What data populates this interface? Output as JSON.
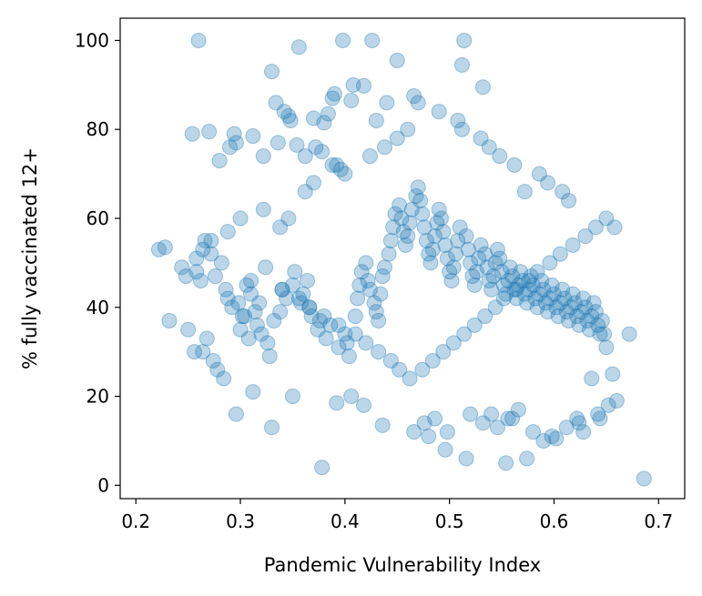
{
  "chart_data": {
    "type": "scatter",
    "title": "",
    "xlabel": "Pandemic Vulnerability Index",
    "ylabel": "% fully vaccinated 12+",
    "xlim": [
      0.185,
      0.725
    ],
    "ylim": [
      -3,
      105
    ],
    "xticks": [
      0.2,
      0.3,
      0.4,
      0.5,
      0.6,
      0.7
    ],
    "xtick_labels": [
      "0.2",
      "0.3",
      "0.4",
      "0.5",
      "0.6",
      "0.7"
    ],
    "yticks": [
      0,
      20,
      40,
      60,
      80,
      100
    ],
    "ytick_labels": [
      "0",
      "20",
      "40",
      "60",
      "80",
      "100"
    ],
    "grid": false,
    "marker_color": "#1f77b4",
    "marker_opacity": 0.3,
    "series": [
      {
        "x": [
          0.26,
          0.356,
          0.398,
          0.426,
          0.514,
          0.45,
          0.512,
          0.33,
          0.532,
          0.408,
          0.418,
          0.466,
          0.388,
          0.334,
          0.342,
          0.346,
          0.348,
          0.37,
          0.38,
          0.384,
          0.39,
          0.406,
          0.44,
          0.254,
          0.27,
          0.294,
          0.312,
          0.296,
          0.29,
          0.28,
          0.322,
          0.336,
          0.354,
          0.362,
          0.372,
          0.378,
          0.392,
          0.396,
          0.222,
          0.228,
          0.244,
          0.248,
          0.258,
          0.262,
          0.266,
          0.272,
          0.276,
          0.282,
          0.286,
          0.288,
          0.292,
          0.298,
          0.302,
          0.306,
          0.31,
          0.314,
          0.318,
          0.232,
          0.25,
          0.256,
          0.264,
          0.268,
          0.274,
          0.278,
          0.284,
          0.3,
          0.304,
          0.308,
          0.316,
          0.32,
          0.326,
          0.328,
          0.332,
          0.338,
          0.34,
          0.344,
          0.35,
          0.352,
          0.358,
          0.36,
          0.364,
          0.366,
          0.368,
          0.374,
          0.376,
          0.382,
          0.386,
          0.394,
          0.4,
          0.402,
          0.404,
          0.41,
          0.412,
          0.414,
          0.416,
          0.42,
          0.422,
          0.424,
          0.428,
          0.43,
          0.432,
          0.434,
          0.436,
          0.438,
          0.442,
          0.444,
          0.446,
          0.448,
          0.452,
          0.454,
          0.456,
          0.458,
          0.46,
          0.462,
          0.464,
          0.468,
          0.47,
          0.472,
          0.474,
          0.476,
          0.478,
          0.48,
          0.482,
          0.484,
          0.486,
          0.488,
          0.49,
          0.492,
          0.494,
          0.496,
          0.498,
          0.5,
          0.502,
          0.504,
          0.506,
          0.508,
          0.51,
          0.516,
          0.518,
          0.52,
          0.522,
          0.524,
          0.526,
          0.528,
          0.53,
          0.534,
          0.536,
          0.538,
          0.54,
          0.542,
          0.544,
          0.546,
          0.548,
          0.55,
          0.552,
          0.554,
          0.556,
          0.558,
          0.56,
          0.562,
          0.564,
          0.566,
          0.568,
          0.57,
          0.572,
          0.574,
          0.576,
          0.578,
          0.58,
          0.582,
          0.584,
          0.586,
          0.588,
          0.59,
          0.592,
          0.594,
          0.596,
          0.598,
          0.6,
          0.602,
          0.604,
          0.606,
          0.608,
          0.61,
          0.612,
          0.614,
          0.616,
          0.618,
          0.62,
          0.622,
          0.624,
          0.626,
          0.628,
          0.63,
          0.632,
          0.634,
          0.636,
          0.638,
          0.64,
          0.642,
          0.644,
          0.646,
          0.648,
          0.65,
          0.656,
          0.66,
          0.672,
          0.686,
          0.378,
          0.392,
          0.35,
          0.33,
          0.312,
          0.296,
          0.406,
          0.418,
          0.436,
          0.48,
          0.496,
          0.516,
          0.554,
          0.574,
          0.59,
          0.602,
          0.622,
          0.636,
          0.642,
          0.652,
          0.546,
          0.556,
          0.566,
          0.498,
          0.476,
          0.466,
          0.486,
          0.52,
          0.532,
          0.54,
          0.56,
          0.58,
          0.598,
          0.612,
          0.624,
          0.628,
          0.644,
          0.658,
          0.614,
          0.608,
          0.594,
          0.586,
          0.572,
          0.562,
          0.548,
          0.538,
          0.53,
          0.512,
          0.508,
          0.49,
          0.47,
          0.46,
          0.45,
          0.438,
          0.43,
          0.424,
          0.4,
          0.388,
          0.37,
          0.362,
          0.346,
          0.338,
          0.322,
          0.3,
          0.288,
          0.272,
          0.264,
          0.258,
          0.324,
          0.31,
          0.34,
          0.356,
          0.366,
          0.38,
          0.394,
          0.41,
          0.42,
          0.432,
          0.444,
          0.452,
          0.462,
          0.474,
          0.484,
          0.494,
          0.504,
          0.514,
          0.524,
          0.534,
          0.544,
          0.552,
          0.564,
          0.576,
          0.584,
          0.596,
          0.606,
          0.618,
          0.63,
          0.64,
          0.65
        ],
        "y": [
          100,
          98.5,
          100,
          100,
          100,
          95.5,
          94.5,
          93,
          89.5,
          90,
          89.8,
          87.5,
          87,
          86,
          84,
          83,
          82,
          82.5,
          81.5,
          83.5,
          88,
          86.5,
          86,
          79,
          79.5,
          79,
          78.5,
          77,
          76,
          73,
          74,
          77,
          76.5,
          74,
          76,
          75,
          72,
          71,
          53,
          53.5,
          49,
          47,
          48,
          46,
          55,
          52,
          47,
          50,
          44,
          42,
          40,
          41,
          38,
          45,
          43,
          39,
          41,
          37,
          35,
          30,
          30,
          33,
          28,
          26,
          24,
          35,
          38,
          33,
          36,
          34,
          32,
          29,
          37,
          39,
          44,
          42,
          45,
          48,
          41,
          43,
          46,
          40,
          38,
          35,
          37,
          33,
          36,
          31,
          34,
          32,
          29,
          38,
          42,
          45,
          48,
          50,
          46,
          44,
          41,
          39,
          37,
          43,
          47,
          49,
          52,
          55,
          58,
          61,
          63,
          60,
          57,
          54,
          56,
          59,
          62,
          65,
          67,
          64,
          61,
          58,
          55,
          52,
          50,
          53,
          56,
          59,
          62,
          60,
          57,
          54,
          51,
          48,
          46,
          49,
          52,
          55,
          58,
          56,
          53,
          50,
          47,
          45,
          48,
          51,
          54,
          52,
          49,
          46,
          44,
          47,
          50,
          53,
          51,
          48,
          45,
          43,
          46,
          49,
          47,
          44,
          42,
          45,
          48,
          46,
          43,
          41,
          44,
          47,
          45,
          42,
          40,
          43,
          46,
          44,
          41,
          39,
          42,
          45,
          43,
          40,
          38,
          41,
          44,
          42,
          39,
          37,
          40,
          43,
          41,
          38,
          36,
          39,
          42,
          40,
          37,
          35,
          38,
          41,
          39,
          36,
          34,
          37,
          34,
          31,
          25,
          19,
          34,
          1.5,
          4,
          18.5,
          20,
          13,
          21,
          16,
          20,
          18,
          13.5,
          11,
          8,
          6,
          5,
          6,
          10,
          10.5,
          15,
          24,
          16,
          18,
          13,
          15,
          17,
          12,
          14,
          12,
          15,
          16,
          14,
          16,
          15,
          12,
          11,
          13,
          14,
          12,
          15,
          58,
          64,
          66,
          68,
          70,
          66,
          72,
          74,
          76,
          78,
          80,
          82,
          84,
          86,
          80,
          78,
          76,
          82,
          74,
          70,
          72,
          68,
          66,
          60,
          58,
          62,
          60,
          57,
          55,
          53,
          51,
          49,
          46,
          44,
          42,
          40,
          38,
          36,
          34,
          32,
          30,
          28,
          26,
          24,
          26,
          28,
          30,
          32,
          34,
          36,
          38,
          40,
          42,
          44,
          46,
          48,
          50,
          52,
          54,
          56,
          58,
          60
        ]
      }
    ]
  }
}
